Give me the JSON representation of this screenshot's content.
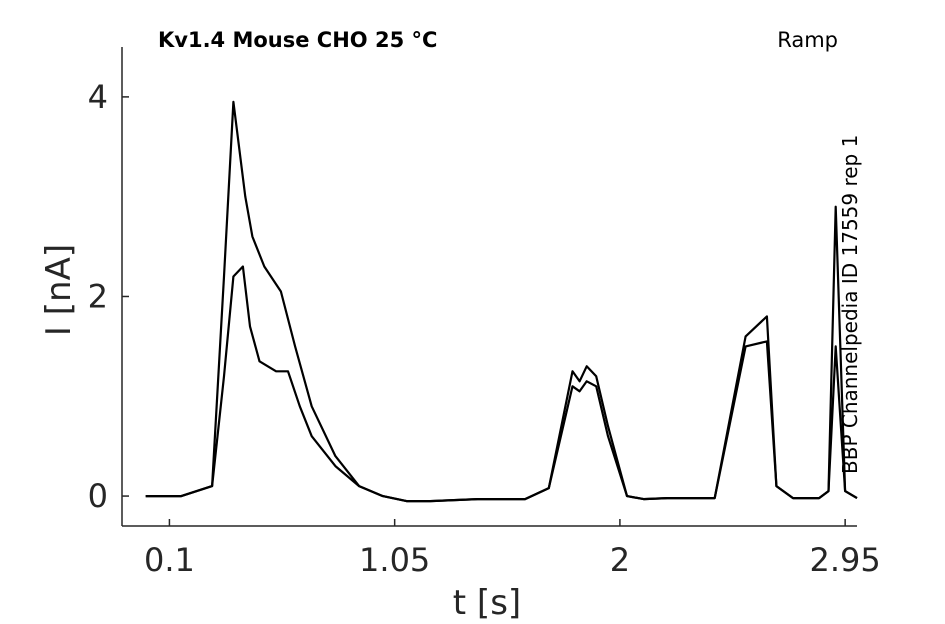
{
  "chart_data": {
    "type": "line",
    "title": "Kv1.4  Mouse  CHO  25 °C",
    "protocol_label": "Ramp",
    "side_label": "BBP Channelpedia ID 17559 rep 1",
    "xlabel": "t [s]",
    "ylabel": "I [nA]",
    "xlim": [
      -0.1,
      3.0
    ],
    "ylim": [
      -0.3,
      4.5
    ],
    "x_ticks": [
      0.1,
      1.05,
      2,
      2.95
    ],
    "x_tick_labels": [
      "0.1",
      "1.05",
      "2",
      "2.95"
    ],
    "y_ticks": [
      0,
      2,
      4
    ],
    "y_tick_labels": [
      "0",
      "2",
      "4"
    ],
    "grid": false,
    "line_color": "#000000",
    "series": [
      {
        "x": [
          0.0,
          0.15,
          0.28,
          0.33,
          0.37,
          0.41,
          0.44,
          0.48,
          0.55,
          0.6,
          0.65,
          0.7,
          0.8,
          0.9,
          1.0,
          1.1,
          1.2,
          1.4,
          1.6,
          1.7,
          1.8,
          1.83,
          1.86,
          1.9,
          1.95,
          2.03,
          2.1,
          2.2,
          2.3,
          2.4,
          2.53,
          2.62,
          2.66,
          2.73,
          2.76,
          2.8,
          2.84,
          2.88,
          2.91,
          2.95,
          3.0
        ],
        "y": [
          0.0,
          0.0,
          0.1,
          1.2,
          2.2,
          2.3,
          1.7,
          1.35,
          1.25,
          1.25,
          0.9,
          0.6,
          0.3,
          0.1,
          0.0,
          -0.05,
          -0.05,
          -0.03,
          -0.03,
          0.08,
          1.1,
          1.05,
          1.15,
          1.1,
          0.6,
          0.0,
          -0.03,
          -0.02,
          -0.02,
          -0.02,
          1.5,
          1.55,
          0.1,
          -0.02,
          -0.02,
          -0.02,
          -0.02,
          0.05,
          1.5,
          0.05,
          -0.02
        ]
      },
      {
        "x": [
          0.0,
          0.15,
          0.28,
          0.33,
          0.37,
          0.42,
          0.45,
          0.5,
          0.57,
          0.63,
          0.7,
          0.8,
          0.9,
          1.0,
          1.1,
          1.2,
          1.4,
          1.6,
          1.7,
          1.8,
          1.83,
          1.86,
          1.9,
          1.95,
          2.03,
          2.1,
          2.2,
          2.3,
          2.4,
          2.53,
          2.62,
          2.66,
          2.73,
          2.8,
          2.84,
          2.88,
          2.91,
          2.95,
          3.0
        ],
        "y": [
          0.0,
          0.0,
          0.1,
          2.2,
          3.95,
          3.0,
          2.6,
          2.3,
          2.05,
          1.5,
          0.9,
          0.4,
          0.1,
          0.0,
          -0.05,
          -0.05,
          -0.03,
          -0.03,
          0.08,
          1.25,
          1.15,
          1.3,
          1.2,
          0.7,
          0.0,
          -0.03,
          -0.02,
          -0.02,
          -0.02,
          1.6,
          1.8,
          0.1,
          -0.02,
          -0.02,
          -0.02,
          0.05,
          2.9,
          0.05,
          -0.02
        ]
      }
    ]
  }
}
